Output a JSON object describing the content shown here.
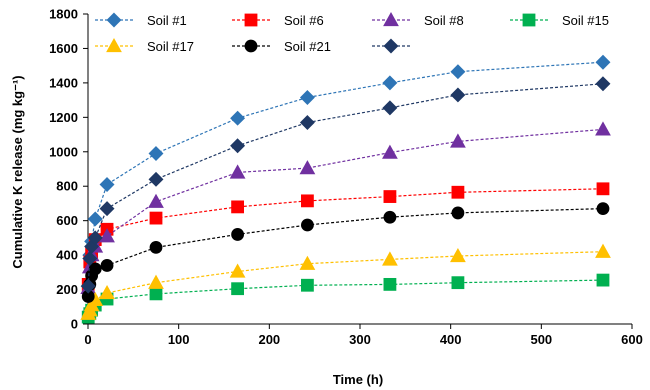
{
  "chart_data": {
    "type": "line",
    "xlabel": "Time (h)",
    "ylabel": "Cumulative K release (mg kg⁻¹)",
    "xlim": [
      0,
      600
    ],
    "ylim": [
      0,
      1800
    ],
    "xticks": [
      "0",
      "100",
      "200",
      "300",
      "400",
      "500",
      "600"
    ],
    "yticks": [
      "0",
      "200",
      "400",
      "600",
      "800",
      "1000",
      "1200",
      "1400",
      "1600",
      "1800"
    ],
    "grid": false,
    "legend_position": "top",
    "x": [
      0.25,
      2,
      4,
      8,
      21,
      75,
      165,
      242,
      333,
      408,
      568
    ],
    "series": [
      {
        "name": "Soil #1",
        "color": "#2e75b6",
        "marker": "diamond",
        "values": [
          220,
          400,
          480,
          610,
          810,
          990,
          1195,
          1315,
          1400,
          1465,
          1520
        ]
      },
      {
        "name": "Soil #6",
        "color": "#ff0000",
        "marker": "square",
        "values": [
          230,
          360,
          410,
          490,
          550,
          615,
          680,
          715,
          740,
          765,
          785
        ]
      },
      {
        "name": "Soil #8",
        "color": "#7030a0",
        "marker": "triangle",
        "values": [
          210,
          330,
          400,
          450,
          510,
          710,
          880,
          905,
          995,
          1060,
          1130
        ]
      },
      {
        "name": "Soil #15",
        "color": "#00b050",
        "marker": "square",
        "values": [
          40,
          60,
          80,
          110,
          145,
          175,
          205,
          225,
          230,
          240,
          255
        ]
      },
      {
        "name": "Soil #17",
        "color": "#ffc000",
        "marker": "triangle",
        "values": [
          60,
          80,
          110,
          140,
          180,
          240,
          305,
          350,
          375,
          395,
          420
        ]
      },
      {
        "name": "Soil #21",
        "color": "#000000",
        "marker": "circle",
        "values": [
          160,
          230,
          280,
          320,
          340,
          445,
          520,
          575,
          620,
          645,
          670
        ]
      },
      {
        "name": "",
        "color": "#1f3864",
        "marker": "diamond",
        "values": [
          220,
          380,
          450,
          500,
          670,
          840,
          1035,
          1170,
          1255,
          1330,
          1395
        ]
      }
    ]
  }
}
